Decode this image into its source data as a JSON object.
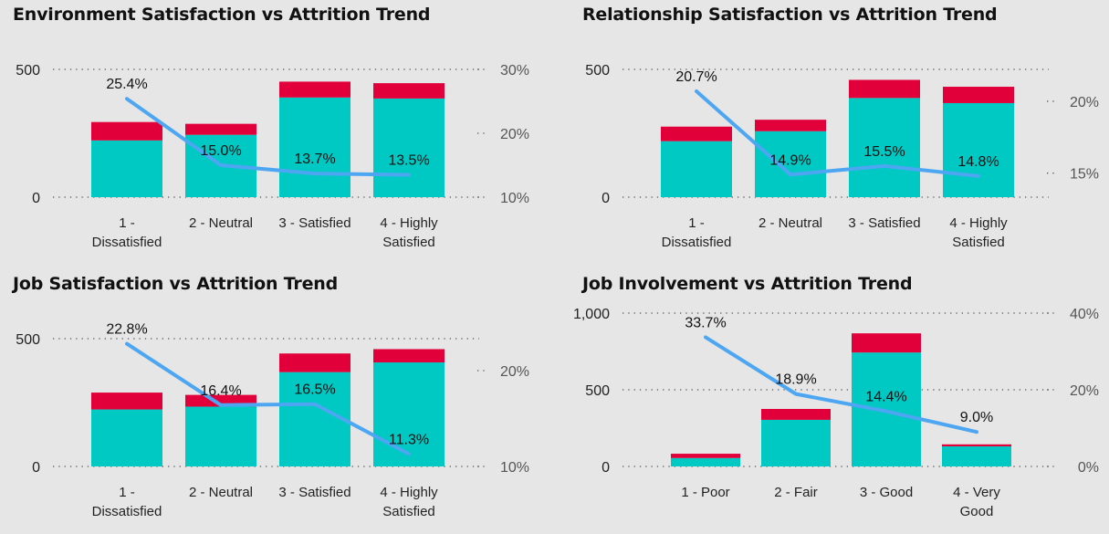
{
  "colors": {
    "retained": "#00c8c3",
    "attrition": "#e2003b",
    "rate_line": "#4da6f2",
    "background": "#e6e6e6"
  },
  "chart_data": [
    {
      "type": "bar",
      "stacked": true,
      "title": "Environment Satisfaction vs Attrition Trend",
      "categories": [
        [
          "1 -",
          "Dissatisfied"
        ],
        [
          "2 - Neutral"
        ],
        [
          "3 - Satisfied"
        ],
        [
          "4 - Highly",
          "Satisfied"
        ]
      ],
      "series": [
        {
          "values": [
            222,
            244,
            390,
            386
          ]
        },
        {
          "values": [
            72,
            43,
            62,
            60
          ]
        }
      ],
      "line": {
        "values": [
          25.4,
          15.0,
          13.7,
          13.5
        ],
        "labels": [
          "25.4%",
          "15.0%",
          "13.7%",
          "13.5%"
        ]
      },
      "ylim": [
        0,
        500
      ],
      "yticks": [
        "0",
        "500"
      ],
      "y2lim": [
        10,
        30
      ],
      "y2ticks": [
        "10%",
        "20%",
        "30%"
      ],
      "y2tick_values": [
        10,
        20,
        30
      ],
      "grid": true
    },
    {
      "type": "bar",
      "stacked": true,
      "title": "Relationship Satisfaction vs Attrition Trend",
      "categories": [
        [
          "1 -",
          "Dissatisfied"
        ],
        [
          "2 - Neutral"
        ],
        [
          "3 - Satisfied"
        ],
        [
          "4 - Highly",
          "Satisfied"
        ]
      ],
      "series": [
        {
          "values": [
            219,
            258,
            388,
            368
          ]
        },
        {
          "values": [
            57,
            45,
            71,
            64
          ]
        }
      ],
      "line": {
        "values": [
          20.7,
          14.9,
          15.5,
          14.8
        ],
        "labels": [
          "20.7%",
          "14.9%",
          "15.5%",
          "14.8%"
        ]
      },
      "ylim": [
        0,
        500
      ],
      "yticks": [
        "0",
        "500"
      ],
      "y2lim": [
        13.33,
        22.22
      ],
      "y2ticks": [
        "15%",
        "20%"
      ],
      "y2tick_values": [
        15,
        20
      ],
      "grid": true
    },
    {
      "type": "bar",
      "stacked": true,
      "title": "Job Satisfaction vs Attrition Trend",
      "categories": [
        [
          "1 -",
          "Dissatisfied"
        ],
        [
          "2 - Neutral"
        ],
        [
          "3 - Satisfied"
        ],
        [
          "4 - Highly",
          "Satisfied"
        ]
      ],
      "series": [
        {
          "values": [
            223,
            234,
            369,
            407
          ]
        },
        {
          "values": [
            66,
            46,
            73,
            52
          ]
        }
      ],
      "line": {
        "values": [
          22.8,
          16.4,
          16.5,
          11.3
        ],
        "labels": [
          "22.8%",
          "16.4%",
          "16.5%",
          "11.3%"
        ]
      },
      "ylim": [
        0,
        500
      ],
      "yticks": [
        "0",
        "500"
      ],
      "y2lim": [
        10,
        23.33
      ],
      "y2ticks": [
        "10%",
        "20%"
      ],
      "y2tick_values": [
        10,
        20
      ],
      "grid": true
    },
    {
      "type": "bar",
      "stacked": true,
      "title": "Job Involvement vs Attrition Trend",
      "categories": [
        [
          "1 - Poor"
        ],
        [
          "2 - Fair"
        ],
        [
          "3 - Good"
        ],
        [
          "4 - Very",
          "Good"
        ]
      ],
      "series": [
        {
          "values": [
            55,
            304,
            743,
            131
          ]
        },
        {
          "values": [
            28,
            71,
            125,
            13
          ]
        }
      ],
      "line": {
        "values": [
          33.7,
          18.9,
          14.4,
          9.0
        ],
        "labels": [
          "33.7%",
          "18.9%",
          "14.4%",
          "9.0%"
        ]
      },
      "ylim": [
        0,
        1000
      ],
      "yticks": [
        "0",
        "500",
        "1,000"
      ],
      "y2lim": [
        0,
        40
      ],
      "y2ticks": [
        "0%",
        "20%",
        "40%"
      ],
      "y2tick_values": [
        0,
        20,
        40
      ],
      "grid": true
    }
  ]
}
